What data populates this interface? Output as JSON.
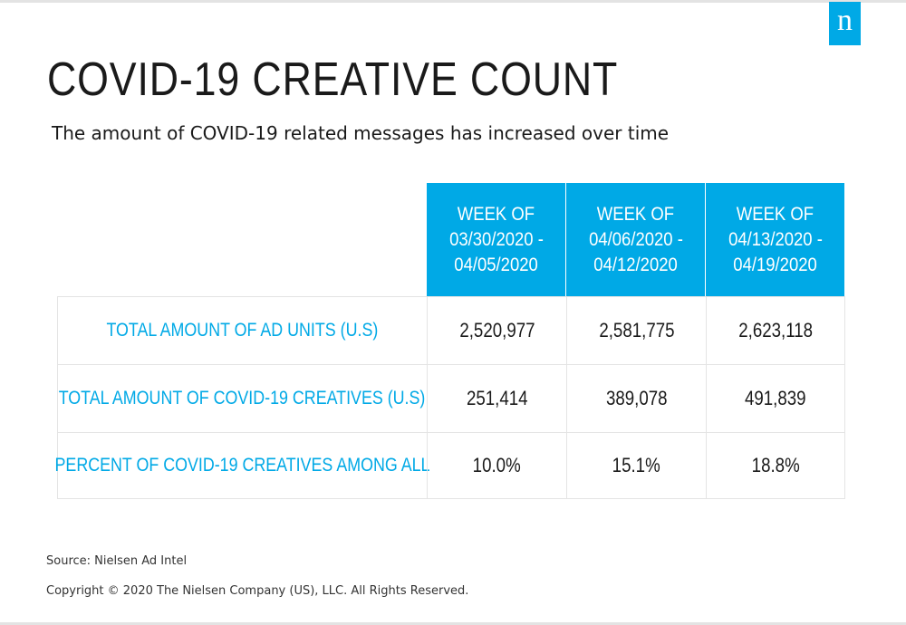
{
  "brand": {
    "logo_letter": "n",
    "accent_color": "#00a9e6"
  },
  "title": "COVID-19 CREATIVE COUNT",
  "subtitle": "The amount of COVID-19 related messages has increased over time",
  "chart_data": {
    "type": "table",
    "title": "COVID-19 CREATIVE COUNT",
    "subtitle": "The amount of COVID-19 related messages has increased over time",
    "columns": [
      {
        "line1": "WEEK OF",
        "line2": "03/30/2020 -",
        "line3": "04/05/2020"
      },
      {
        "line1": "WEEK OF",
        "line2": "04/06/2020 -",
        "line3": "04/12/2020"
      },
      {
        "line1": "WEEK OF",
        "line2": "04/13/2020 -",
        "line3": "04/19/2020"
      }
    ],
    "rows": [
      {
        "label": "TOTAL AMOUNT OF AD UNITS (U.S)",
        "values": [
          "2,520,977",
          "2,581,775",
          "2,623,118"
        ]
      },
      {
        "label": "TOTAL AMOUNT OF COVID-19 CREATIVES (U.S)",
        "values": [
          "251,414",
          "389,078",
          "491,839"
        ]
      },
      {
        "label": "PERCENT OF COVID-19 CREATIVES AMONG ALL",
        "values": [
          "10.0%",
          "15.1%",
          "18.8%"
        ]
      }
    ]
  },
  "footer": {
    "source": "Source: Nielsen Ad Intel",
    "copyright": "Copyright © 2020 The Nielsen Company (US), LLC. All Rights Reserved."
  }
}
